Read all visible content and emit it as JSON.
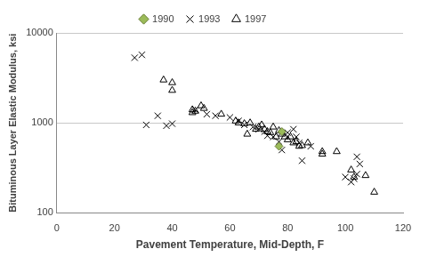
{
  "chart_data": {
    "type": "scatter",
    "x_label": "Pavement Temperature, Mid-Depth, F",
    "y_label": "Bituminous Layer Elastic Modulus, ksi",
    "xlim": [
      0,
      120
    ],
    "xticks": [
      0,
      20,
      40,
      60,
      80,
      100,
      120
    ],
    "ylim": [
      100,
      10000
    ],
    "yticks": [
      100,
      1000,
      10000
    ],
    "log": "y",
    "grid": true,
    "legend": "top",
    "series": [
      {
        "name": "1990",
        "color": "#9bbb59",
        "marker": "diamond",
        "x": [
          77,
          78
        ],
        "values": [
          550,
          800
        ]
      },
      {
        "name": "1993",
        "color": "#000000",
        "marker": "x",
        "x": [
          27,
          29.5,
          31,
          35,
          38,
          40,
          48,
          52,
          55,
          60,
          63,
          65,
          68,
          70,
          72,
          73,
          75,
          77,
          78,
          80,
          82,
          83,
          84,
          85,
          88,
          100,
          102,
          103,
          104,
          104,
          105
        ],
        "values": [
          5300,
          5700,
          950,
          1200,
          930,
          980,
          1400,
          1250,
          1200,
          1150,
          1050,
          950,
          900,
          850,
          800,
          720,
          700,
          620,
          500,
          780,
          850,
          700,
          600,
          380,
          550,
          250,
          220,
          240,
          270,
          420,
          350
        ]
      },
      {
        "name": "1997",
        "color": "#000000",
        "marker": "triangle",
        "x": [
          37,
          40,
          40,
          47,
          47,
          48,
          50,
          51,
          57,
          62,
          63,
          65,
          66,
          67,
          69,
          70,
          71,
          72,
          73,
          74,
          75,
          76,
          77,
          78,
          79,
          80,
          81,
          82,
          83,
          84,
          85,
          87,
          92,
          92,
          97,
          102,
          103,
          107,
          110
        ],
        "values": [
          3000,
          2800,
          2300,
          1300,
          1400,
          1350,
          1550,
          1450,
          1250,
          1050,
          1000,
          980,
          750,
          1000,
          850,
          900,
          950,
          850,
          800,
          780,
          900,
          700,
          820,
          750,
          700,
          650,
          700,
          600,
          620,
          550,
          560,
          600,
          450,
          480,
          480,
          300,
          250,
          260,
          170
        ]
      }
    ]
  }
}
